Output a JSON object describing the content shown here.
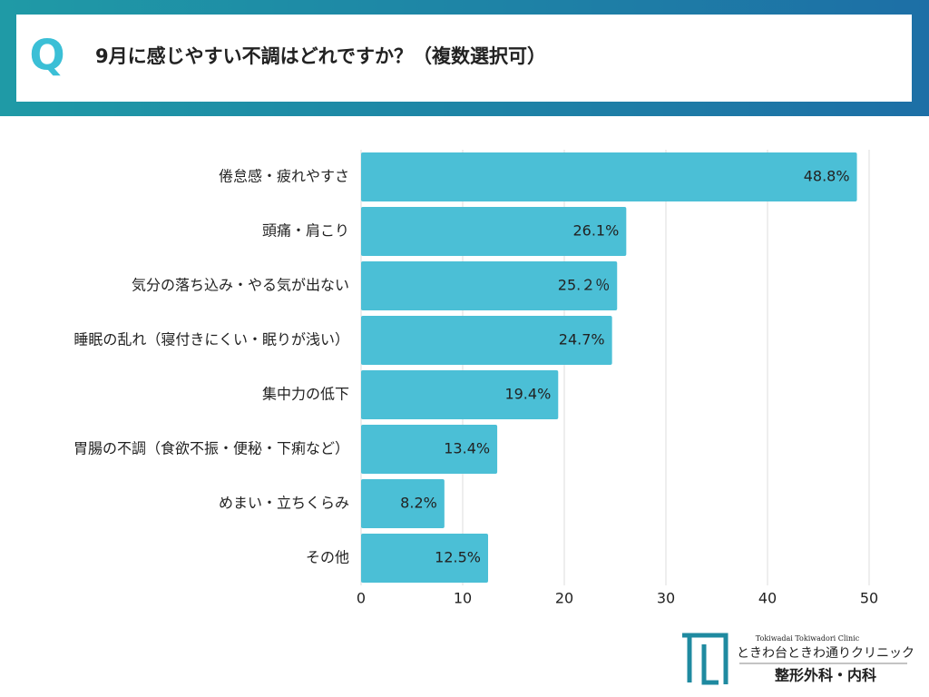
{
  "header": {
    "mark": "Q",
    "title": "9月に感じやすい不調はどれですか？（複数選択可）"
  },
  "chart_data": {
    "type": "barh",
    "categories": [
      "倦怠感・疲れやすさ",
      "頭痛・肩こり",
      "気分の落ち込み・やる気が出ない",
      "睡眠の乱れ（寝付きにくい・眠りが浅い）",
      "集中力の低下",
      "胃腸の不調（食欲不振・便秘・下痢など）",
      "めまい・立ちくらみ",
      "その他"
    ],
    "values": [
      48.8,
      26.1,
      25.2,
      24.7,
      19.4,
      13.4,
      8.2,
      12.5
    ],
    "value_labels": [
      "48.8%",
      "26.1%",
      "25.２％",
      "24.7%",
      "19.4%",
      "13.4%",
      "8.2%",
      "12.5%"
    ],
    "color": "#4bbfd6",
    "xlim": [
      0,
      50
    ],
    "xticks": [
      0,
      10,
      20,
      30,
      40,
      50
    ],
    "grid": true
  },
  "logo": {
    "english": "Tokiwadai Tokiwadori Clinic",
    "name": "ときわ台ときわ通りクリニック",
    "departments": "整形外科・内科"
  }
}
